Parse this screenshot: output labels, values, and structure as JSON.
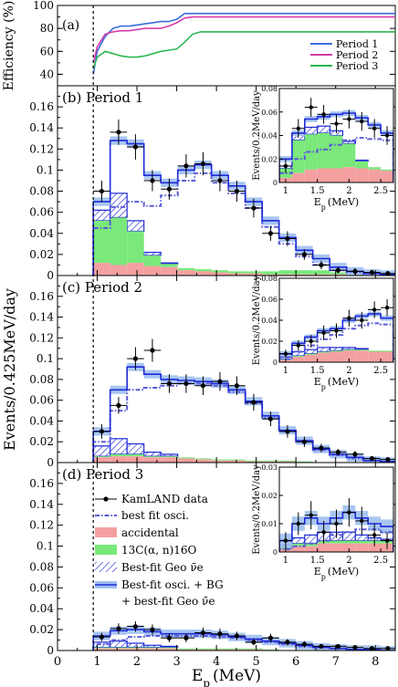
{
  "chart_data": [
    {
      "panel_label": "(a)",
      "type": "line",
      "ylabel": "Efficiency (%)",
      "xlim": [
        0,
        8.5
      ],
      "ylim": [
        30,
        100
      ],
      "yticks": [
        40,
        60,
        80,
        100
      ],
      "x": [
        0.9,
        1.0,
        1.2,
        1.4,
        1.6,
        1.8,
        2.0,
        2.2,
        2.4,
        2.6,
        2.8,
        3.0,
        3.2,
        3.4,
        3.6,
        4.0,
        5.0,
        6.0,
        7.0,
        8.0,
        8.5
      ],
      "series": [
        {
          "name": "Period 1",
          "color": "#3a6fd8",
          "values": [
            40,
            60,
            73,
            80,
            82,
            82,
            83,
            84,
            85,
            86,
            86,
            88,
            93,
            93,
            93,
            93,
            93,
            93,
            93,
            93,
            93
          ]
        },
        {
          "name": "Period 2",
          "color": "#d63da8",
          "values": [
            50,
            64,
            75,
            77,
            78,
            78,
            79,
            80,
            80,
            80,
            82,
            85,
            89,
            90,
            90,
            90,
            90,
            90,
            90,
            90,
            90
          ]
        },
        {
          "name": "Period 3",
          "color": "#2db84f",
          "values": [
            45,
            55,
            60,
            58,
            56,
            55,
            55,
            56,
            58,
            60,
            61,
            62,
            68,
            75,
            77,
            77,
            77,
            77,
            77,
            77,
            77
          ]
        }
      ],
      "legend": [
        "Period 1",
        "Period 2",
        "Period 3"
      ],
      "legend_position": "bottom-right"
    },
    {
      "panel_label": "(b) Period 1",
      "type": "bar",
      "xlim": [
        0,
        8.5
      ],
      "ylim": [
        0,
        0.18
      ],
      "yticks": [
        "0",
        "0.02",
        "0.04",
        "0.06",
        "0.08",
        "0.1",
        "0.12",
        "0.14",
        "0.16"
      ],
      "bin_edges": [
        0.9,
        1.325,
        1.75,
        2.175,
        2.6,
        3.025,
        3.45,
        3.875,
        4.3,
        4.725,
        5.15,
        5.575,
        6.0,
        6.425,
        6.85,
        7.275,
        7.7,
        8.125,
        8.5
      ],
      "data": [
        0.08,
        0.136,
        0.122,
        0.09,
        0.082,
        0.104,
        0.106,
        0.09,
        0.08,
        0.064,
        0.04,
        0.035,
        0.02,
        0.01,
        0.005,
        0.004,
        0.003,
        0.002
      ],
      "data_err": [
        0.01,
        0.012,
        0.012,
        0.01,
        0.01,
        0.011,
        0.011,
        0.01,
        0.01,
        0.009,
        0.007,
        0.007,
        0.005,
        0.004,
        0.003,
        0.003,
        0.002,
        0.002
      ],
      "best_fit_osci": [
        0.045,
        0.065,
        0.07,
        0.066,
        0.076,
        0.09,
        0.097,
        0.088,
        0.078,
        0.064,
        0.046,
        0.03,
        0.018,
        0.01,
        0.005,
        0.003,
        0.002,
        0.001
      ],
      "accidental": [
        0.012,
        0.01,
        0.012,
        0.009,
        0.008,
        0.005,
        0.004,
        0.003,
        0.002,
        0.002,
        0.001,
        0.001,
        0.001,
        0.001,
        0.001,
        0,
        0,
        0
      ],
      "c13_alpha_n": [
        0.04,
        0.045,
        0.03,
        0.01,
        0.003,
        0.002,
        0.002,
        0.002,
        0.002,
        0.002,
        0.003,
        0.004,
        0.004,
        0.004,
        0.002,
        0.001,
        0,
        0
      ],
      "geo": [
        0.01,
        0.023,
        0.01,
        0.003,
        0.001,
        0,
        0,
        0,
        0,
        0,
        0,
        0,
        0,
        0,
        0,
        0,
        0,
        0
      ],
      "total": [
        0.07,
        0.128,
        0.125,
        0.095,
        0.088,
        0.1,
        0.105,
        0.095,
        0.085,
        0.07,
        0.052,
        0.036,
        0.024,
        0.016,
        0.008,
        0.004,
        0.002,
        0.001
      ],
      "inset": {
        "ylabel": "Events/0.2MeV/day",
        "xlabel": "E_p (MeV)",
        "xlim": [
          0.9,
          2.7
        ],
        "ylim": [
          0,
          0.08
        ],
        "xticks": [
          "1",
          "1.5",
          "2",
          "2.5"
        ],
        "yticks": [
          "0",
          "0.02",
          "0.04",
          "0.06",
          "0.08"
        ],
        "bin_edges": [
          0.9,
          1.1,
          1.3,
          1.5,
          1.7,
          1.9,
          2.1,
          2.3,
          2.5,
          2.7
        ],
        "data": [
          0.014,
          0.046,
          0.064,
          0.058,
          0.05,
          0.054,
          0.052,
          0.046,
          0.04
        ],
        "data_err": [
          0.006,
          0.008,
          0.008,
          0.008,
          0.008,
          0.008,
          0.008,
          0.008,
          0.008
        ],
        "total": [
          0.02,
          0.042,
          0.054,
          0.056,
          0.058,
          0.059,
          0.055,
          0.049,
          0.042
        ],
        "best_fit_osci": [
          0.008,
          0.02,
          0.026,
          0.028,
          0.032,
          0.036,
          0.038,
          0.037,
          0.036
        ],
        "accidental": [
          0.004,
          0.008,
          0.011,
          0.012,
          0.012,
          0.013,
          0.012,
          0.011,
          0.01
        ],
        "c13_alpha_n": [
          0.008,
          0.028,
          0.03,
          0.03,
          0.028,
          0.02,
          0.006,
          0.002,
          0.001
        ],
        "geo": [
          0.002,
          0.006,
          0.006,
          0.006,
          0.004,
          0.002,
          0.001,
          0,
          0
        ]
      }
    },
    {
      "panel_label": "(c) Period 2",
      "type": "bar",
      "xlim": [
        0,
        8.5
      ],
      "ylim": [
        0,
        0.18
      ],
      "yticks": [
        "0",
        "0.02",
        "0.04",
        "0.06",
        "0.08",
        "0.1",
        "0.12",
        "0.14",
        "0.16"
      ],
      "bin_edges": [
        0.9,
        1.325,
        1.75,
        2.175,
        2.6,
        3.025,
        3.45,
        3.875,
        4.3,
        4.725,
        5.15,
        5.575,
        6.0,
        6.425,
        6.85,
        7.275,
        7.7,
        8.125,
        8.5
      ],
      "data": [
        0.03,
        0.055,
        0.1,
        0.108,
        0.076,
        0.076,
        0.074,
        0.078,
        0.074,
        0.058,
        0.042,
        0.03,
        0.02,
        0.014,
        0.01,
        0.008,
        0.004,
        0.003
      ],
      "data_err": [
        0.007,
        0.008,
        0.011,
        0.011,
        0.009,
        0.009,
        0.009,
        0.009,
        0.009,
        0.008,
        0.007,
        0.006,
        0.005,
        0.004,
        0.003,
        0.003,
        0.002,
        0.002
      ],
      "best_fit_osci": [
        0.02,
        0.05,
        0.07,
        0.072,
        0.074,
        0.076,
        0.076,
        0.074,
        0.068,
        0.057,
        0.043,
        0.03,
        0.02,
        0.012,
        0.007,
        0.004,
        0.002,
        0.001
      ],
      "accidental": [
        0.005,
        0.006,
        0.006,
        0.005,
        0.005,
        0.004,
        0.003,
        0.002,
        0.002,
        0.001,
        0.001,
        0.001,
        0,
        0,
        0,
        0,
        0,
        0
      ],
      "c13_alpha_n": [
        0.001,
        0.002,
        0.002,
        0.001,
        0.001,
        0.001,
        0.001,
        0.001,
        0.001,
        0.001,
        0.001,
        0.001,
        0.001,
        0,
        0,
        0,
        0,
        0
      ],
      "geo": [
        0.01,
        0.015,
        0.01,
        0.004,
        0.002,
        0,
        0,
        0,
        0,
        0,
        0,
        0,
        0,
        0,
        0,
        0,
        0,
        0
      ],
      "total": [
        0.03,
        0.07,
        0.092,
        0.085,
        0.08,
        0.079,
        0.078,
        0.076,
        0.07,
        0.059,
        0.045,
        0.031,
        0.021,
        0.013,
        0.008,
        0.005,
        0.002,
        0.001
      ],
      "inset": {
        "ylabel": "Events/0.2MeV/day",
        "xlabel": "E_p (MeV)",
        "xlim": [
          0.9,
          2.7
        ],
        "ylim": [
          0,
          0.08
        ],
        "xticks": [
          "1",
          "1.5",
          "2",
          "2.5"
        ],
        "yticks": [
          "0",
          "0.02",
          "0.04",
          "0.06",
          "0.08"
        ],
        "bin_edges": [
          0.9,
          1.1,
          1.3,
          1.5,
          1.7,
          1.9,
          2.1,
          2.3,
          2.5,
          2.7
        ],
        "data": [
          0.008,
          0.016,
          0.02,
          0.028,
          0.03,
          0.042,
          0.04,
          0.05,
          0.052
        ],
        "data_err": [
          0.004,
          0.005,
          0.006,
          0.007,
          0.007,
          0.008,
          0.008,
          0.008,
          0.008
        ],
        "total": [
          0.008,
          0.018,
          0.024,
          0.03,
          0.032,
          0.04,
          0.044,
          0.046,
          0.042
        ],
        "best_fit_osci": [
          0.003,
          0.01,
          0.016,
          0.022,
          0.026,
          0.032,
          0.035,
          0.037,
          0.036
        ],
        "accidental": [
          0.002,
          0.005,
          0.007,
          0.009,
          0.01,
          0.011,
          0.011,
          0.01,
          0.01
        ],
        "c13_alpha_n": [
          0.001,
          0.001,
          0.001,
          0.001,
          0.001,
          0.001,
          0.001,
          0.001,
          0.001
        ],
        "geo": [
          0.002,
          0.004,
          0.004,
          0.004,
          0.003,
          0.002,
          0.001,
          0,
          0
        ]
      }
    },
    {
      "panel_label": "(d) Period 3",
      "type": "bar",
      "xlabel": "E_p (MeV)",
      "xlim": [
        0,
        8.5
      ],
      "ylim": [
        0,
        0.18
      ],
      "xticks": [
        "0",
        "1",
        "2",
        "3",
        "4",
        "5",
        "6",
        "7",
        "8"
      ],
      "yticks": [
        "0",
        "0.02",
        "0.04",
        "0.06",
        "0.08",
        "0.1",
        "0.12",
        "0.14",
        "0.16"
      ],
      "bin_edges": [
        0.9,
        1.325,
        1.75,
        2.175,
        2.6,
        3.025,
        3.45,
        3.875,
        4.3,
        4.725,
        5.15,
        5.575,
        6.0,
        6.425,
        6.85,
        7.275,
        7.7,
        8.125,
        8.5
      ],
      "data": [
        0.013,
        0.021,
        0.023,
        0.02,
        0.012,
        0.012,
        0.017,
        0.016,
        0.014,
        0.008,
        0.012,
        0.008,
        0.006,
        0.004,
        0.004,
        0.003,
        0.002,
        0.002
      ],
      "data_err": [
        0.004,
        0.005,
        0.005,
        0.005,
        0.004,
        0.004,
        0.005,
        0.005,
        0.004,
        0.003,
        0.004,
        0.003,
        0.003,
        0.002,
        0.002,
        0.002,
        0.002,
        0.002
      ],
      "best_fit_osci": [
        0.006,
        0.01,
        0.013,
        0.014,
        0.014,
        0.014,
        0.014,
        0.013,
        0.012,
        0.01,
        0.008,
        0.006,
        0.004,
        0.003,
        0.002,
        0.001,
        0.001,
        0
      ],
      "accidental": [
        0.002,
        0.002,
        0.002,
        0.002,
        0.002,
        0.001,
        0.001,
        0.001,
        0.001,
        0.001,
        0,
        0,
        0,
        0,
        0,
        0,
        0,
        0
      ],
      "c13_alpha_n": [
        0.001,
        0.001,
        0.001,
        0.001,
        0.001,
        0.001,
        0.001,
        0.001,
        0.001,
        0.001,
        0.001,
        0,
        0,
        0,
        0,
        0,
        0,
        0
      ],
      "geo": [
        0.005,
        0.006,
        0.004,
        0.002,
        0.001,
        0,
        0,
        0,
        0,
        0,
        0,
        0,
        0,
        0,
        0,
        0,
        0,
        0
      ],
      "total": [
        0.014,
        0.019,
        0.02,
        0.018,
        0.016,
        0.016,
        0.016,
        0.015,
        0.013,
        0.011,
        0.009,
        0.007,
        0.005,
        0.003,
        0.002,
        0.001,
        0.001,
        0
      ],
      "inset": {
        "ylabel": "Events/0.2MeV/day",
        "xlabel": "E_p (MeV)",
        "xlim": [
          0.9,
          2.7
        ],
        "ylim": [
          0,
          0.03
        ],
        "xticks": [
          "1",
          "1.5",
          "2",
          "2.5"
        ],
        "yticks": [
          "0",
          "0.01",
          "0.02",
          "0.03"
        ],
        "bin_edges": [
          0.9,
          1.1,
          1.3,
          1.5,
          1.7,
          1.9,
          2.1,
          2.3,
          2.5,
          2.7
        ],
        "data": [
          0.004,
          0.01,
          0.013,
          0.007,
          0.01,
          0.014,
          0.011,
          0.006,
          0.004
        ],
        "data_err": [
          0.003,
          0.004,
          0.005,
          0.004,
          0.005,
          0.005,
          0.005,
          0.004,
          0.003
        ],
        "total": [
          0.004,
          0.01,
          0.012,
          0.01,
          0.012,
          0.014,
          0.012,
          0.01,
          0.009
        ],
        "best_fit_osci": [
          0.001,
          0.002,
          0.003,
          0.004,
          0.006,
          0.007,
          0.008,
          0.008,
          0.007
        ],
        "accidental": [
          0.001,
          0.002,
          0.002,
          0.003,
          0.003,
          0.003,
          0.003,
          0.003,
          0.003
        ],
        "c13_alpha_n": [
          0.0005,
          0.001,
          0.001,
          0.001,
          0.001,
          0.001,
          0.001,
          0.001,
          0.001
        ],
        "geo": [
          0.001,
          0.002,
          0.003,
          0.003,
          0.003,
          0.003,
          0.002,
          0.001,
          0.0005
        ]
      }
    }
  ],
  "shared": {
    "ylabel": "Events/0.425MeV/day",
    "vline_x": 0.9
  },
  "legend_main": [
    {
      "key": "kamland",
      "label": "KamLAND data"
    },
    {
      "key": "osci",
      "label": "best fit osci."
    },
    {
      "key": "acc",
      "label": "accidental"
    },
    {
      "key": "c13",
      "label": "13C(α, n)16O"
    },
    {
      "key": "geo",
      "label": "Best-fit Geo ν̄e"
    },
    {
      "key": "total",
      "label": "Best-fit osci. + BG"
    },
    {
      "key": "total2",
      "label": "+ best-fit Geo ν̄e"
    }
  ],
  "colors": {
    "total_line": "#1f2ad8",
    "total_band": "#9fc0ef",
    "osci": "#5b5bd8",
    "accidental": "#f4a0a0",
    "c13": "#7ae87a",
    "geo_hatch": "#1f2ad8",
    "data": "#000000"
  }
}
